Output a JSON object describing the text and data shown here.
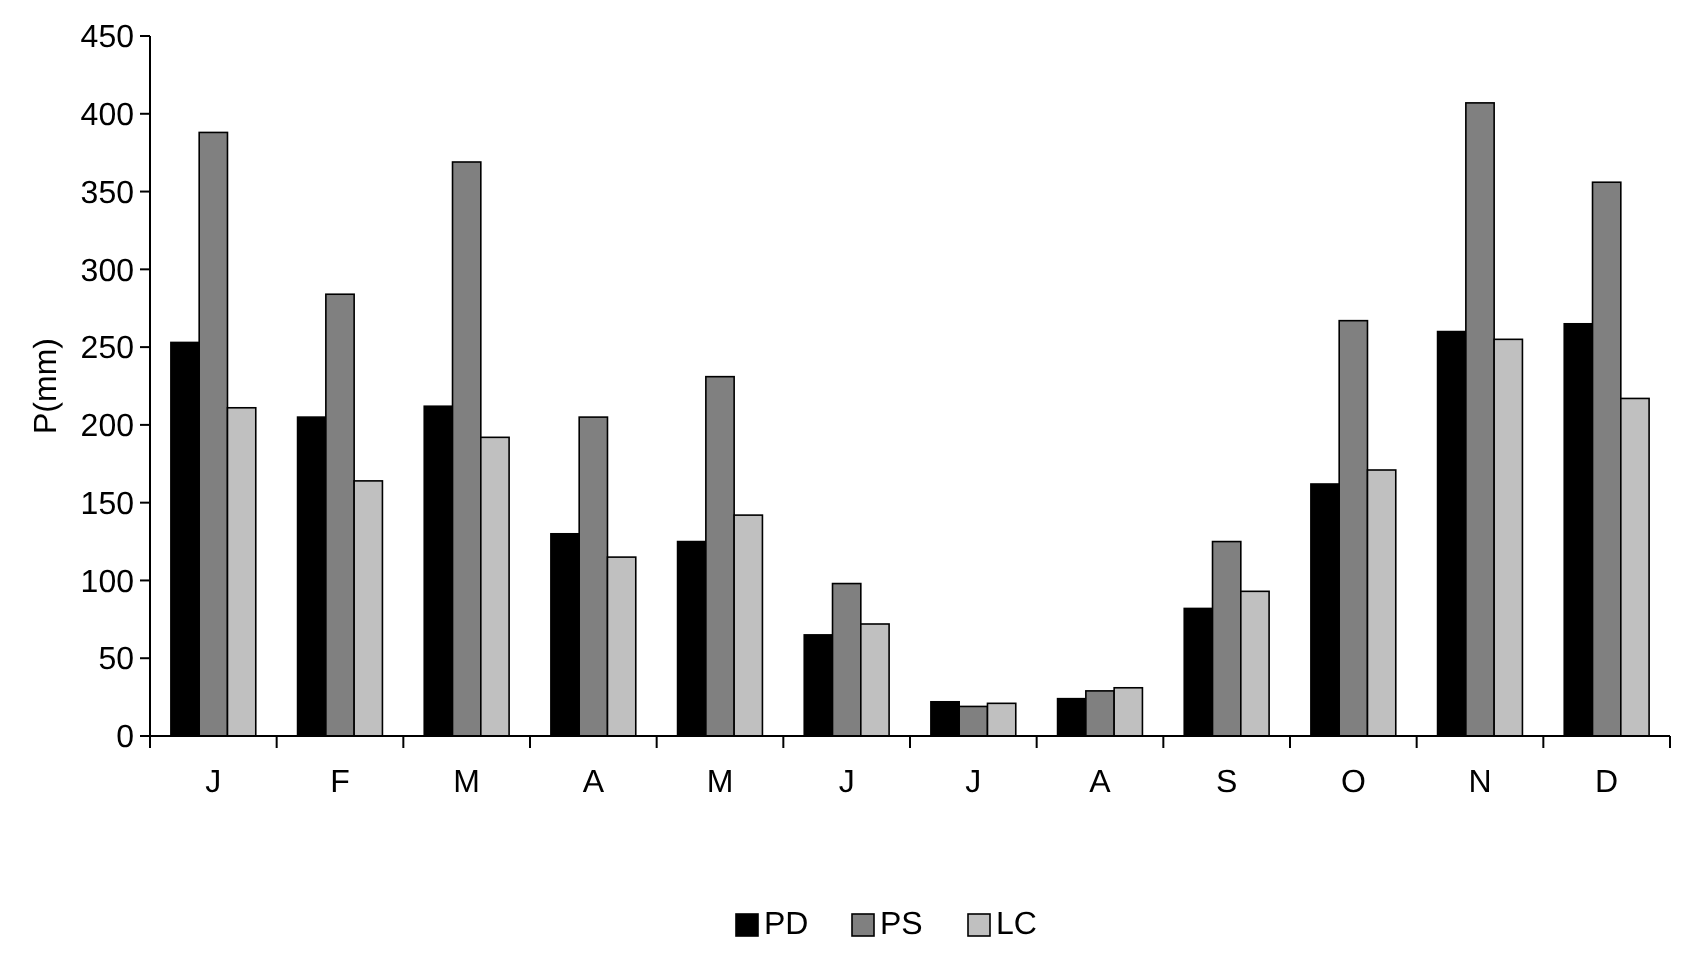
{
  "chart_data": {
    "type": "bar",
    "ylabel": "P(mm)",
    "categories": [
      "J",
      "F",
      "M",
      "A",
      "M",
      "J",
      "J",
      "A",
      "S",
      "O",
      "N",
      "D"
    ],
    "series": [
      {
        "name": "PD",
        "color": "#000000",
        "values": [
          253,
          205,
          212,
          130,
          125,
          65,
          22,
          24,
          82,
          162,
          260,
          265
        ]
      },
      {
        "name": "PS",
        "color": "#808080",
        "values": [
          388,
          284,
          369,
          205,
          231,
          98,
          19,
          29,
          125,
          267,
          407,
          356
        ]
      },
      {
        "name": "LC",
        "color": "#c0c0c0",
        "values": [
          211,
          164,
          192,
          115,
          142,
          72,
          21,
          31,
          93,
          171,
          255,
          217
        ]
      }
    ],
    "ylim": [
      0,
      450
    ],
    "yticks": [
      0,
      50,
      100,
      150,
      200,
      250,
      300,
      350,
      400,
      450
    ],
    "grid": false,
    "legend": "bottom"
  }
}
